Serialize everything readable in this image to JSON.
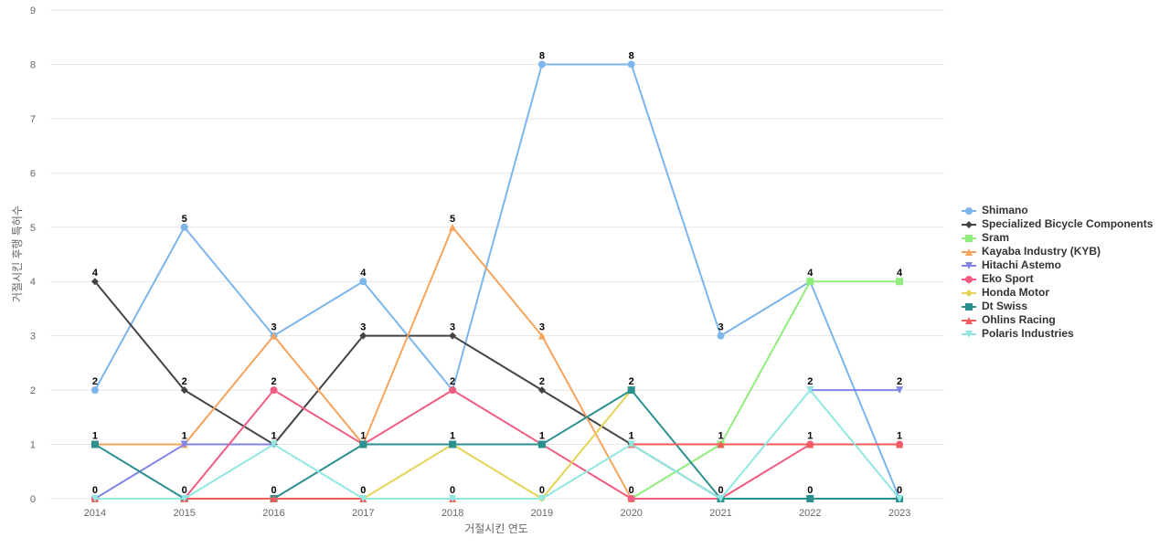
{
  "chart_data": {
    "type": "line",
    "title": "",
    "xlabel": "거절시킨 연도",
    "ylabel": "거절시킨 후행 특허수",
    "categories": [
      "2014",
      "2015",
      "2016",
      "2017",
      "2018",
      "2019",
      "2020",
      "2021",
      "2022",
      "2023"
    ],
    "ylim": [
      0,
      9
    ],
    "yticks": [
      0,
      1,
      2,
      3,
      4,
      5,
      6,
      7,
      8,
      9
    ],
    "grid": true,
    "legend": "right",
    "series": [
      {
        "name": "Shimano",
        "color": "#7cb5ec",
        "marker": "circle",
        "values": [
          2,
          5,
          3,
          4,
          2,
          8,
          8,
          3,
          4,
          0
        ]
      },
      {
        "name": "Specialized Bicycle Components",
        "color": "#434348",
        "marker": "diamond",
        "values": [
          4,
          2,
          1,
          3,
          3,
          2,
          1,
          0,
          null,
          null
        ]
      },
      {
        "name": "Sram",
        "color": "#90ed7d",
        "marker": "square",
        "values": [
          null,
          null,
          null,
          null,
          null,
          null,
          0,
          1,
          4,
          4
        ]
      },
      {
        "name": "Kayaba Industry (KYB)",
        "color": "#f7a35c",
        "marker": "triangle",
        "values": [
          1,
          1,
          3,
          1,
          5,
          3,
          0,
          null,
          null,
          null
        ]
      },
      {
        "name": "Hitachi Astemo",
        "color": "#8085e9",
        "marker": "triangle-down",
        "values": [
          0,
          1,
          1,
          null,
          null,
          null,
          null,
          null,
          2,
          2
        ]
      },
      {
        "name": "Eko Sport",
        "color": "#f15c80",
        "marker": "circle",
        "values": [
          0,
          0,
          2,
          1,
          2,
          1,
          0,
          0,
          1,
          1
        ]
      },
      {
        "name": "Honda Motor",
        "color": "#e4d354",
        "marker": "diamond",
        "values": [
          null,
          null,
          null,
          0,
          1,
          0,
          2,
          null,
          null,
          null
        ]
      },
      {
        "name": "Dt Swiss",
        "color": "#2b908f",
        "marker": "square",
        "values": [
          1,
          0,
          0,
          1,
          1,
          1,
          2,
          0,
          0,
          0
        ]
      },
      {
        "name": "Ohlins Racing",
        "color": "#f45b5b",
        "marker": "triangle",
        "values": [
          0,
          0,
          0,
          0,
          0,
          null,
          1,
          1,
          1,
          1
        ]
      },
      {
        "name": "Polaris Industries",
        "color": "#91e8e1",
        "marker": "triangle-down",
        "values": [
          0,
          0,
          1,
          0,
          0,
          0,
          1,
          0,
          2,
          0
        ]
      }
    ],
    "data_labels": [
      {
        "x": "2014",
        "values": [
          0,
          1,
          2,
          4
        ]
      },
      {
        "x": "2015",
        "values": [
          0,
          1,
          2,
          5
        ]
      },
      {
        "x": "2016",
        "values": [
          0,
          1,
          2,
          3
        ]
      },
      {
        "x": "2017",
        "values": [
          0,
          1,
          3,
          4
        ]
      },
      {
        "x": "2018",
        "values": [
          0,
          1,
          2,
          3,
          5
        ]
      },
      {
        "x": "2019",
        "values": [
          0,
          1,
          2,
          3,
          8
        ]
      },
      {
        "x": "2020",
        "values": [
          0,
          1,
          2,
          8
        ]
      },
      {
        "x": "2021",
        "values": [
          0,
          1,
          3
        ]
      },
      {
        "x": "2022",
        "values": [
          0,
          1,
          2,
          4
        ]
      },
      {
        "x": "2023",
        "values": [
          0,
          1,
          2,
          4
        ]
      }
    ]
  }
}
